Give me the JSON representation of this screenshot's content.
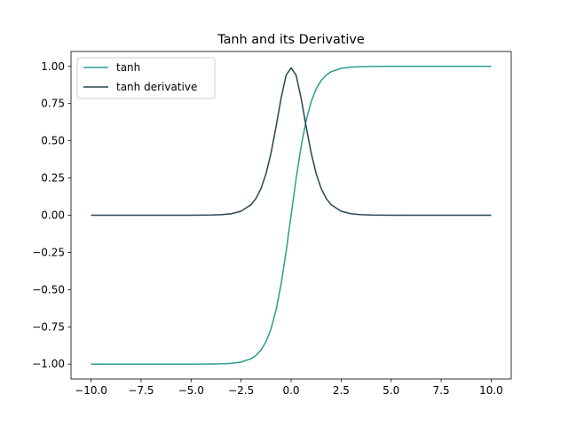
{
  "chart_data": {
    "type": "line",
    "title": "Tanh and its Derivative",
    "xlabel": "",
    "ylabel": "",
    "xlim": [
      -11.0,
      11.0
    ],
    "ylim": [
      -1.1,
      1.1
    ],
    "grid": false,
    "legend_position": "top-left",
    "x_ticks": [
      -10.0,
      -7.5,
      -5.0,
      -2.5,
      0.0,
      2.5,
      5.0,
      7.5,
      10.0
    ],
    "x_tick_labels": [
      "−10.0",
      "−7.5",
      "−5.0",
      "−2.5",
      "0.0",
      "2.5",
      "5.0",
      "7.5",
      "10.0"
    ],
    "y_ticks": [
      1.0,
      0.75,
      0.5,
      0.25,
      0.0,
      -0.25,
      -0.5,
      -0.75,
      -1.0
    ],
    "y_tick_labels": [
      "1.00",
      "0.75",
      "0.50",
      "0.25",
      "0.00",
      "−0.25",
      "−0.50",
      "−0.75",
      "−1.00"
    ],
    "x": [
      -10.0,
      -8.0,
      -6.0,
      -5.0,
      -4.0,
      -3.5,
      -3.0,
      -2.5,
      -2.0,
      -1.75,
      -1.5,
      -1.25,
      -1.0,
      -0.75,
      -0.5,
      -0.25,
      0.0,
      0.25,
      0.5,
      0.75,
      1.0,
      1.25,
      1.5,
      1.75,
      2.0,
      2.5,
      3.0,
      3.5,
      4.0,
      5.0,
      6.0,
      8.0,
      10.0
    ],
    "series": [
      {
        "name": "tanh",
        "color": "#2a9d8f",
        "values": [
          -1.0,
          -1.0,
          -1.0,
          -0.9999,
          -0.9993,
          -0.9982,
          -0.9951,
          -0.9866,
          -0.964,
          -0.9414,
          -0.9051,
          -0.8483,
          -0.7616,
          -0.6351,
          -0.4621,
          -0.2449,
          0.0,
          0.2449,
          0.4621,
          0.6351,
          0.7616,
          0.8483,
          0.9051,
          0.9414,
          0.964,
          0.9866,
          0.9951,
          0.9982,
          0.9993,
          0.9999,
          1.0,
          1.0,
          1.0
        ]
      },
      {
        "name": "tanh derivative",
        "color": "#264653",
        "values": [
          0.0,
          0.0,
          0.0,
          0.0002,
          0.0013,
          0.0036,
          0.0099,
          0.0266,
          0.0707,
          0.1138,
          0.1807,
          0.2805,
          0.42,
          0.5966,
          0.7864,
          0.94,
          0.99,
          0.94,
          0.7864,
          0.5966,
          0.42,
          0.2805,
          0.1807,
          0.1138,
          0.0707,
          0.0266,
          0.0099,
          0.0036,
          0.0013,
          0.0002,
          0.0,
          0.0,
          0.0
        ]
      }
    ]
  }
}
